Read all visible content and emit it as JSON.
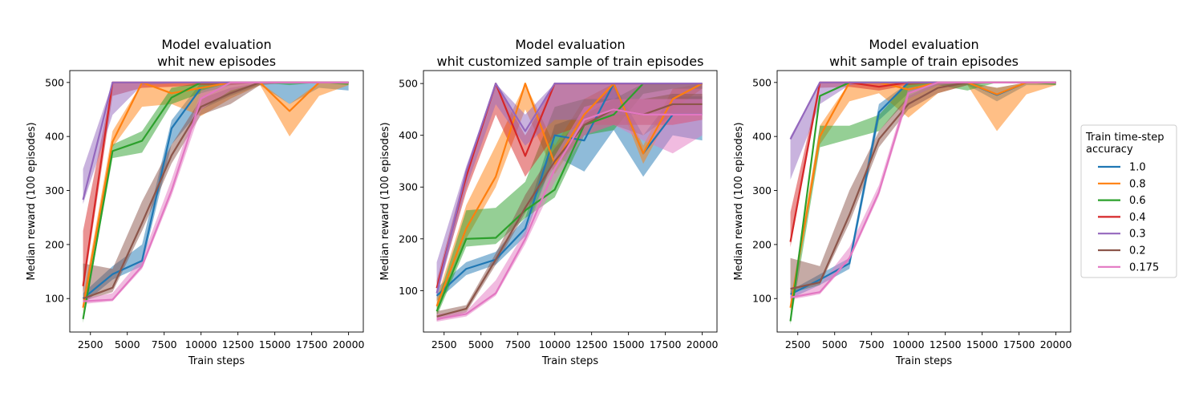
{
  "chart_data": [
    {
      "type": "line",
      "title": [
        "Model evaluation",
        "whit new episodes"
      ],
      "xlabel": "Train steps",
      "ylabel": "Median reward (100 episodes)",
      "xlim": [
        1100,
        21000
      ],
      "ylim": [
        38,
        522
      ],
      "xticks": [
        2500,
        5000,
        7500,
        10000,
        12500,
        15000,
        17500,
        20000
      ],
      "yticks": [
        100,
        200,
        300,
        400,
        500
      ],
      "x": [
        2000,
        4000,
        6000,
        8000,
        10000,
        12000,
        14000,
        16000,
        18000,
        20000
      ],
      "series": [
        {
          "name": "1.0",
          "values": [
            100,
            145,
            170,
            415,
            490,
            500,
            500,
            500,
            500,
            500
          ],
          "lower": [
            90,
            135,
            160,
            385,
            450,
            475,
            495,
            460,
            490,
            485
          ],
          "upper": [
            110,
            160,
            200,
            430,
            500,
            500,
            500,
            500,
            500,
            500
          ]
        },
        {
          "name": "0.8",
          "values": [
            83,
            390,
            500,
            480,
            490,
            500,
            500,
            447,
            500,
            500
          ],
          "lower": [
            75,
            380,
            455,
            460,
            438,
            470,
            495,
            400,
            475,
            495
          ],
          "upper": [
            100,
            410,
            500,
            500,
            500,
            500,
            500,
            460,
            500,
            500
          ]
        },
        {
          "name": "0.6",
          "values": [
            62,
            373,
            392,
            472,
            500,
            500,
            500,
            500,
            500,
            500
          ],
          "lower": [
            55,
            360,
            370,
            460,
            480,
            495,
            500,
            495,
            500,
            495
          ],
          "upper": [
            72,
            385,
            410,
            490,
            500,
            500,
            500,
            500,
            500,
            500
          ]
        },
        {
          "name": "0.4",
          "values": [
            123,
            500,
            500,
            500,
            500,
            500,
            500,
            500,
            500,
            500
          ],
          "lower": [
            110,
            475,
            490,
            492,
            495,
            495,
            500,
            500,
            500,
            500
          ],
          "upper": [
            225,
            500,
            500,
            500,
            500,
            500,
            500,
            500,
            500,
            500
          ]
        },
        {
          "name": "0.3",
          "values": [
            283,
            500,
            500,
            500,
            500,
            500,
            500,
            500,
            500,
            500
          ],
          "lower": [
            275,
            440,
            495,
            498,
            500,
            500,
            500,
            500,
            500,
            500
          ],
          "upper": [
            340,
            500,
            500,
            500,
            500,
            500,
            500,
            500,
            500,
            500
          ]
        },
        {
          "name": "0.2",
          "values": [
            100,
            120,
            240,
            365,
            455,
            480,
            500,
            500,
            500,
            500
          ],
          "lower": [
            95,
            112,
            225,
            350,
            440,
            460,
            495,
            500,
            500,
            500
          ],
          "upper": [
            165,
            155,
            280,
            385,
            470,
            490,
            500,
            500,
            500,
            500
          ]
        },
        {
          "name": "0.175",
          "values": [
            95,
            98,
            160,
            300,
            470,
            500,
            500,
            500,
            500,
            500
          ],
          "lower": [
            90,
            95,
            155,
            290,
            450,
            485,
            500,
            500,
            500,
            500
          ],
          "upper": [
            100,
            110,
            175,
            320,
            485,
            500,
            500,
            500,
            500,
            500
          ]
        }
      ]
    },
    {
      "type": "line",
      "title": [
        "Model evaluation",
        "whit customized sample of train episodes"
      ],
      "xlabel": "Train steps",
      "ylabel": "Median reward (100 episodes)",
      "xlim": [
        1100,
        21000
      ],
      "ylim": [
        20,
        525
      ],
      "xticks": [
        2500,
        5000,
        7500,
        10000,
        12500,
        15000,
        17500,
        20000
      ],
      "yticks": [
        100,
        200,
        300,
        400,
        500
      ],
      "x": [
        2000,
        4000,
        6000,
        8000,
        10000,
        12000,
        14000,
        16000,
        18000,
        20000
      ],
      "series": [
        {
          "name": "1.0",
          "values": [
            90,
            142,
            160,
            220,
            400,
            390,
            500,
            365,
            440,
            440
          ],
          "lower": [
            80,
            130,
            150,
            205,
            360,
            330,
            410,
            320,
            400,
            390
          ],
          "upper": [
            105,
            155,
            175,
            240,
            420,
            440,
            500,
            400,
            475,
            475
          ]
        },
        {
          "name": "0.8",
          "values": [
            70,
            220,
            320,
            500,
            345,
            440,
            500,
            365,
            470,
            500
          ],
          "lower": [
            55,
            200,
            300,
            450,
            325,
            410,
            490,
            345,
            450,
            490
          ],
          "upper": [
            85,
            265,
            380,
            500,
            380,
            470,
            500,
            380,
            490,
            500
          ]
        },
        {
          "name": "0.6",
          "values": [
            60,
            200,
            202,
            255,
            295,
            420,
            440,
            500,
            500,
            500
          ],
          "lower": [
            50,
            185,
            190,
            240,
            280,
            400,
            410,
            480,
            490,
            490
          ],
          "upper": [
            75,
            255,
            260,
            310,
            455,
            470,
            470,
            500,
            500,
            500
          ]
        },
        {
          "name": "0.4",
          "values": [
            105,
            320,
            500,
            360,
            500,
            500,
            500,
            500,
            500,
            500
          ],
          "lower": [
            95,
            290,
            440,
            320,
            400,
            420,
            420,
            420,
            420,
            430
          ],
          "upper": [
            120,
            335,
            500,
            400,
            500,
            500,
            500,
            500,
            500,
            500
          ]
        },
        {
          "name": "0.3",
          "values": [
            95,
            330,
            500,
            408,
            500,
            500,
            500,
            500,
            500,
            500
          ],
          "lower": [
            85,
            300,
            460,
            380,
            430,
            430,
            440,
            440,
            440,
            440
          ],
          "upper": [
            155,
            340,
            500,
            440,
            500,
            500,
            500,
            500,
            500,
            500
          ]
        },
        {
          "name": "0.2",
          "values": [
            50,
            65,
            160,
            260,
            350,
            420,
            450,
            440,
            460,
            460
          ],
          "lower": [
            42,
            58,
            150,
            250,
            340,
            400,
            420,
            400,
            440,
            440
          ],
          "upper": [
            60,
            72,
            172,
            285,
            375,
            440,
            470,
            470,
            480,
            480
          ]
        },
        {
          "name": "0.175",
          "values": [
            45,
            55,
            95,
            200,
            335,
            430,
            450,
            440,
            440,
            440
          ],
          "lower": [
            40,
            50,
            90,
            190,
            310,
            400,
            420,
            390,
            365,
            400
          ],
          "upper": [
            55,
            60,
            120,
            215,
            360,
            455,
            470,
            470,
            470,
            470
          ]
        }
      ]
    },
    {
      "type": "line",
      "title": [
        "Model evaluation",
        "whit sample of train episodes"
      ],
      "xlabel": "Train steps",
      "ylabel": "Median reward (100 episodes)",
      "xlim": [
        1100,
        21000
      ],
      "ylim": [
        38,
        522
      ],
      "xticks": [
        2500,
        5000,
        7500,
        10000,
        12500,
        15000,
        17500,
        20000
      ],
      "yticks": [
        100,
        200,
        300,
        400,
        500
      ],
      "x": [
        2000,
        4000,
        6000,
        8000,
        10000,
        12000,
        14000,
        16000,
        18000,
        20000
      ],
      "series": [
        {
          "name": "1.0",
          "values": [
            108,
            135,
            165,
            445,
            500,
            500,
            500,
            477,
            500,
            500
          ],
          "lower": [
            100,
            125,
            155,
            430,
            480,
            495,
            495,
            465,
            495,
            495
          ],
          "upper": [
            115,
            145,
            175,
            460,
            500,
            500,
            500,
            490,
            500,
            500
          ]
        },
        {
          "name": "0.8",
          "values": [
            83,
            400,
            500,
            500,
            487,
            500,
            500,
            478,
            500,
            500
          ],
          "lower": [
            75,
            385,
            465,
            480,
            435,
            480,
            495,
            410,
            478,
            495
          ],
          "upper": [
            95,
            420,
            500,
            500,
            500,
            500,
            500,
            490,
            500,
            500
          ]
        },
        {
          "name": "0.6",
          "values": [
            58,
            475,
            500,
            500,
            500,
            500,
            500,
            500,
            500,
            500
          ],
          "lower": [
            52,
            380,
            395,
            410,
            470,
            495,
            485,
            500,
            500,
            495
          ],
          "upper": [
            65,
            420,
            420,
            440,
            500,
            500,
            500,
            500,
            500,
            500
          ]
        },
        {
          "name": "0.4",
          "values": [
            205,
            500,
            500,
            492,
            500,
            500,
            500,
            500,
            500,
            500
          ],
          "lower": [
            195,
            490,
            492,
            485,
            495,
            500,
            500,
            500,
            500,
            500
          ],
          "upper": [
            260,
            500,
            500,
            500,
            500,
            500,
            500,
            500,
            500,
            500
          ]
        },
        {
          "name": "0.3",
          "values": [
            395,
            500,
            500,
            500,
            500,
            500,
            500,
            500,
            500,
            500
          ],
          "lower": [
            320,
            460,
            495,
            500,
            500,
            500,
            500,
            500,
            500,
            500
          ],
          "upper": [
            400,
            500,
            500,
            500,
            500,
            500,
            500,
            500,
            500,
            500
          ]
        },
        {
          "name": "0.2",
          "values": [
            118,
            130,
            255,
            395,
            460,
            490,
            500,
            500,
            500,
            500
          ],
          "lower": [
            110,
            125,
            240,
            380,
            450,
            480,
            495,
            500,
            500,
            500
          ],
          "upper": [
            175,
            160,
            300,
            410,
            475,
            500,
            500,
            500,
            500,
            500
          ]
        },
        {
          "name": "0.175",
          "values": [
            102,
            112,
            175,
            297,
            480,
            500,
            500,
            500,
            500,
            500
          ],
          "lower": [
            98,
            108,
            170,
            290,
            470,
            495,
            500,
            500,
            500,
            500
          ],
          "upper": [
            108,
            125,
            195,
            310,
            490,
            500,
            500,
            500,
            500,
            500
          ]
        }
      ]
    }
  ],
  "legend": {
    "title": "Train time-step\n accuracy",
    "placement": "right",
    "entries": [
      "1.0",
      "0.8",
      "0.6",
      "0.4",
      "0.3",
      "0.2",
      "0.175"
    ]
  },
  "colors": [
    "#1f77b4",
    "#ff7f0e",
    "#2ca02c",
    "#d62728",
    "#9467bd",
    "#8c564b",
    "#e377c2"
  ]
}
